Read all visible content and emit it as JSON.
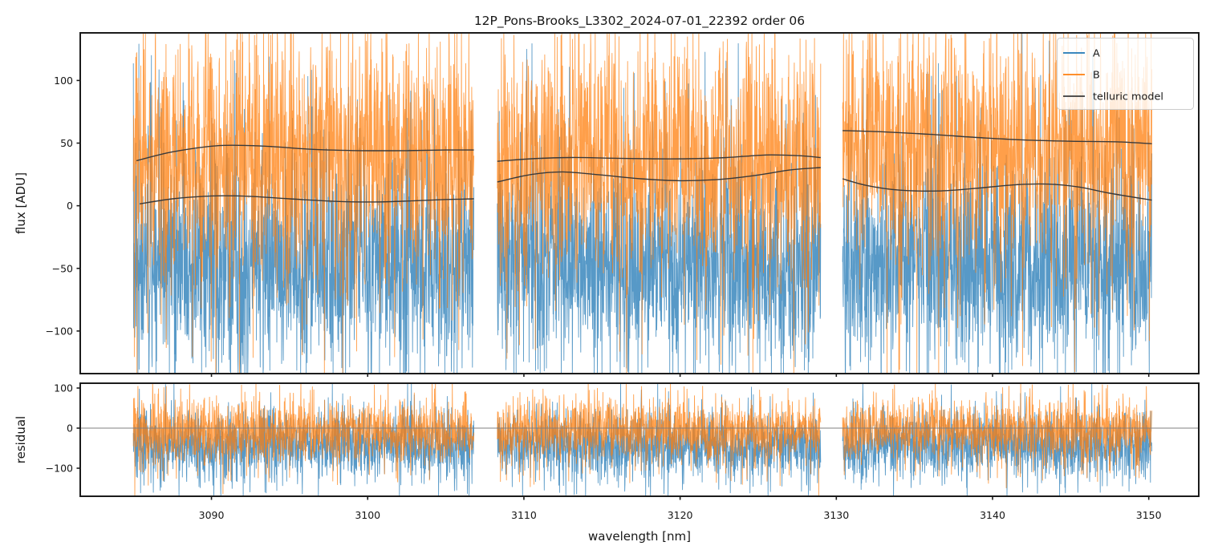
{
  "figure": {
    "title": "12P_Pons-Brooks_L3302_2024-07-01_22392  order 06",
    "xlabel": "wavelength [nm]",
    "ylabel_top": "flux [ADU]",
    "ylabel_bottom": "residual",
    "background": "#ffffff",
    "spine_color": "#1b1b1b",
    "zero_line_color": "#808080"
  },
  "legend": {
    "items": [
      {
        "label": "A",
        "color": "#1f77b4"
      },
      {
        "label": "B",
        "color": "#ff7f0e"
      },
      {
        "label": "telluric model",
        "color": "#3a3a3a"
      }
    ]
  },
  "chart_data": {
    "type": "line",
    "title": "12P_Pons-Brooks_L3302_2024-07-01_22392  order 06",
    "xlabel": "wavelength [nm]",
    "xlim": [
      3081.6,
      3153.2
    ],
    "x_ticks": [
      3090,
      3100,
      3110,
      3120,
      3130,
      3140,
      3150
    ],
    "segments": [
      [
        3085.0,
        3106.8
      ],
      [
        3108.3,
        3129.0
      ],
      [
        3130.4,
        3150.2
      ]
    ],
    "points_per_nm": 65,
    "seed": 7,
    "top_panel": {
      "ylabel": "flux [ADU]",
      "ylim": [
        -134,
        138
      ],
      "y_ticks": [
        -100,
        -50,
        0,
        50,
        100
      ],
      "series": [
        {
          "name": "A",
          "color": "#1f77b4",
          "alpha": 0.75,
          "segment_means": [
            -45,
            -47,
            -45
          ],
          "sd": 40,
          "spike_up_prob": 0.01,
          "spike_up_range": [
            50,
            132
          ],
          "spike_down_prob": 0.0,
          "spike_down_range": [
            0,
            0
          ]
        },
        {
          "name": "B",
          "color": "#ff7f0e",
          "alpha": 0.75,
          "segment_means": [
            38,
            36,
            46
          ],
          "sd": 45,
          "spike_up_prob": 0.0,
          "spike_up_range": [
            0,
            0
          ],
          "spike_down_prob": 0.012,
          "spike_down_range": [
            -135,
            -30
          ]
        }
      ],
      "telluric_model": {
        "name": "telluric model",
        "color": "#3a3a3a",
        "upper_curves": [
          [
            [
              3085.2,
              36
            ],
            [
              3087.5,
              43
            ],
            [
              3090.5,
              48
            ],
            [
              3093.5,
              47.5
            ],
            [
              3096.5,
              45
            ],
            [
              3099.5,
              44
            ],
            [
              3102.5,
              44
            ],
            [
              3105,
              44.5
            ],
            [
              3106.8,
              44.5
            ]
          ],
          [
            [
              3108.3,
              35.5
            ],
            [
              3110.5,
              37.5
            ],
            [
              3113,
              38.5
            ],
            [
              3115.5,
              38
            ],
            [
              3118,
              37.5
            ],
            [
              3120.5,
              37.5
            ],
            [
              3123,
              38.5
            ],
            [
              3125.5,
              40.5
            ],
            [
              3127.5,
              40
            ],
            [
              3129,
              38.5
            ]
          ],
          [
            [
              3130.4,
              60
            ],
            [
              3133,
              59
            ],
            [
              3136,
              57
            ],
            [
              3139,
              54.5
            ],
            [
              3142,
              52.5
            ],
            [
              3145,
              51.5
            ],
            [
              3148,
              51
            ],
            [
              3150.2,
              49.5
            ]
          ]
        ],
        "lower_curves": [
          [
            [
              3085.4,
              1.5
            ],
            [
              3087.5,
              5.5
            ],
            [
              3090,
              7.8
            ],
            [
              3092.5,
              7.5
            ],
            [
              3095,
              5.5
            ],
            [
              3098,
              3.5
            ],
            [
              3100.5,
              3
            ],
            [
              3103,
              4
            ],
            [
              3105,
              5
            ],
            [
              3106.8,
              5.5
            ]
          ],
          [
            [
              3108.3,
              19
            ],
            [
              3110.5,
              25
            ],
            [
              3112.5,
              27
            ],
            [
              3115,
              24.5
            ],
            [
              3117.5,
              21.5
            ],
            [
              3120,
              20
            ],
            [
              3122.5,
              21
            ],
            [
              3125,
              24.5
            ],
            [
              3127,
              28.5
            ],
            [
              3129,
              30.5
            ]
          ],
          [
            [
              3130.4,
              21.5
            ],
            [
              3132,
              16
            ],
            [
              3134,
              12.5
            ],
            [
              3136.5,
              11.8
            ],
            [
              3139,
              14
            ],
            [
              3141.5,
              16.8
            ],
            [
              3143.5,
              17.3
            ],
            [
              3145.5,
              15
            ],
            [
              3147.5,
              10
            ],
            [
              3150.2,
              4.5
            ]
          ]
        ]
      }
    },
    "bottom_panel": {
      "ylabel": "residual",
      "ylim": [
        -170,
        112
      ],
      "y_ticks": [
        -100,
        0,
        100
      ],
      "zero_line": 0,
      "series": [
        {
          "name": "A",
          "color": "#1f77b4",
          "alpha": 0.75,
          "segment_means": [
            -40,
            -44,
            -42
          ],
          "sd": 40,
          "spike_up_prob": 0.0,
          "spike_up_range": [
            0,
            0
          ],
          "spike_down_prob": 0.01,
          "spike_down_range": [
            -170,
            -110
          ]
        },
        {
          "name": "B",
          "color": "#ff7f0e",
          "alpha": 0.75,
          "segment_means": [
            -7,
            -8,
            -6
          ],
          "sd": 36,
          "spike_up_prob": 0.008,
          "spike_up_range": [
            85,
            112
          ],
          "spike_down_prob": 0.008,
          "spike_down_range": [
            -150,
            -90
          ]
        }
      ]
    }
  }
}
